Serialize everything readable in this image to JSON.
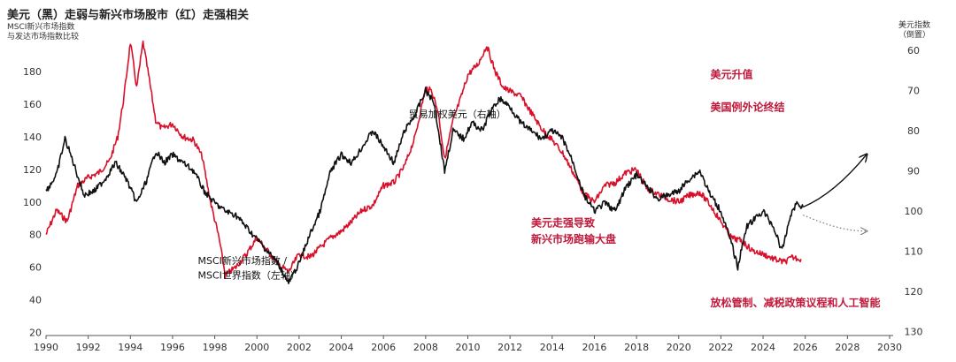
{
  "title": "美元（黑）走弱与新兴市场股市（红）走强相关",
  "left_axis_label": [
    "MSCI新兴市场指数",
    "与发达市场指数比较"
  ],
  "right_axis_label": [
    "美元指数",
    "（倒置）"
  ],
  "colors": {
    "usd": "#111111",
    "em": "#d8102a",
    "annotation": "#c0183a"
  },
  "chart_data": {
    "type": "line",
    "x_ticks": [
      1990,
      1992,
      1994,
      1996,
      1998,
      2000,
      2002,
      2004,
      2006,
      2008,
      2010,
      2012,
      2014,
      2016,
      2018,
      2020,
      2022,
      2024,
      2026,
      2028,
      2030
    ],
    "y_left": {
      "ticks": [
        20,
        40,
        60,
        80,
        100,
        120,
        140,
        160,
        180
      ],
      "range": [
        18,
        198
      ]
    },
    "y_right": {
      "ticks": [
        60,
        70,
        80,
        90,
        100,
        110,
        120,
        130
      ],
      "range": [
        58,
        131
      ],
      "inverted": true
    },
    "series": [
      {
        "name": "MSCI新兴市场指数 / MSCI世界指数（左轴）",
        "axis": "left",
        "points": [
          [
            1990.0,
            80
          ],
          [
            1990.5,
            95
          ],
          [
            1991.0,
            88
          ],
          [
            1991.5,
            110
          ],
          [
            1992.0,
            115
          ],
          [
            1992.5,
            118
          ],
          [
            1993.0,
            125
          ],
          [
            1993.4,
            140
          ],
          [
            1993.7,
            165
          ],
          [
            1994.0,
            198
          ],
          [
            1994.3,
            170
          ],
          [
            1994.6,
            198
          ],
          [
            1994.9,
            175
          ],
          [
            1995.2,
            150
          ],
          [
            1995.5,
            145
          ],
          [
            1996.0,
            148
          ],
          [
            1996.5,
            140
          ],
          [
            1997.0,
            138
          ],
          [
            1997.4,
            128
          ],
          [
            1997.8,
            100
          ],
          [
            1998.2,
            78
          ],
          [
            1998.5,
            55
          ],
          [
            1999.0,
            60
          ],
          [
            1999.5,
            68
          ],
          [
            2000.0,
            78
          ],
          [
            2000.5,
            70
          ],
          [
            2001.0,
            62
          ],
          [
            2001.5,
            57
          ],
          [
            2002.0,
            68
          ],
          [
            2002.5,
            66
          ],
          [
            2003.0,
            72
          ],
          [
            2003.5,
            78
          ],
          [
            2004.0,
            82
          ],
          [
            2004.5,
            88
          ],
          [
            2005.0,
            95
          ],
          [
            2005.5,
            98
          ],
          [
            2006.0,
            110
          ],
          [
            2006.5,
            112
          ],
          [
            2007.0,
            122
          ],
          [
            2007.5,
            140
          ],
          [
            2008.0,
            170
          ],
          [
            2008.3,
            168
          ],
          [
            2008.6,
            155
          ],
          [
            2008.9,
            126
          ],
          [
            2009.3,
            150
          ],
          [
            2009.7,
            165
          ],
          [
            2010.0,
            178
          ],
          [
            2010.5,
            185
          ],
          [
            2010.9,
            196
          ],
          [
            2011.3,
            180
          ],
          [
            2011.7,
            170
          ],
          [
            2012.0,
            168
          ],
          [
            2012.5,
            165
          ],
          [
            2013.0,
            155
          ],
          [
            2013.5,
            145
          ],
          [
            2014.0,
            138
          ],
          [
            2014.5,
            130
          ],
          [
            2015.0,
            118
          ],
          [
            2015.5,
            105
          ],
          [
            2016.0,
            100
          ],
          [
            2016.5,
            110
          ],
          [
            2017.0,
            112
          ],
          [
            2017.5,
            118
          ],
          [
            2018.0,
            120
          ],
          [
            2018.5,
            108
          ],
          [
            2019.0,
            105
          ],
          [
            2019.5,
            102
          ],
          [
            2020.0,
            100
          ],
          [
            2020.5,
            104
          ],
          [
            2021.0,
            106
          ],
          [
            2021.5,
            98
          ],
          [
            2022.0,
            88
          ],
          [
            2022.5,
            78
          ],
          [
            2023.0,
            76
          ],
          [
            2023.5,
            70
          ],
          [
            2024.0,
            68
          ],
          [
            2024.5,
            65
          ],
          [
            2025.0,
            63
          ],
          [
            2025.4,
            66
          ],
          [
            2025.8,
            65
          ]
        ]
      },
      {
        "name": "贸易加权美元（右轴）",
        "axis": "right",
        "points": [
          [
            1990.0,
            95
          ],
          [
            1990.5,
            91
          ],
          [
            1990.9,
            82
          ],
          [
            1991.3,
            88
          ],
          [
            1991.8,
            96
          ],
          [
            1992.3,
            95
          ],
          [
            1992.8,
            92
          ],
          [
            1993.3,
            88
          ],
          [
            1993.8,
            92
          ],
          [
            1994.3,
            98
          ],
          [
            1994.8,
            92
          ],
          [
            1995.2,
            85
          ],
          [
            1995.6,
            88
          ],
          [
            1996.0,
            86
          ],
          [
            1996.5,
            88
          ],
          [
            1997.0,
            90
          ],
          [
            1997.5,
            95
          ],
          [
            1998.0,
            98
          ],
          [
            1998.5,
            100
          ],
          [
            1999.0,
            101
          ],
          [
            1999.5,
            104
          ],
          [
            2000.0,
            107
          ],
          [
            2000.5,
            110
          ],
          [
            2001.0,
            113
          ],
          [
            2001.5,
            118
          ],
          [
            2002.0,
            113
          ],
          [
            2002.5,
            106
          ],
          [
            2003.0,
            100
          ],
          [
            2003.5,
            90
          ],
          [
            2004.0,
            86
          ],
          [
            2004.5,
            88
          ],
          [
            2005.0,
            84
          ],
          [
            2005.5,
            80
          ],
          [
            2006.0,
            84
          ],
          [
            2006.5,
            88
          ],
          [
            2007.0,
            80
          ],
          [
            2007.5,
            76
          ],
          [
            2008.0,
            70
          ],
          [
            2008.4,
            73
          ],
          [
            2008.9,
            90
          ],
          [
            2009.3,
            80
          ],
          [
            2009.8,
            82
          ],
          [
            2010.2,
            78
          ],
          [
            2010.7,
            80
          ],
          [
            2011.0,
            76
          ],
          [
            2011.5,
            72
          ],
          [
            2012.0,
            74
          ],
          [
            2012.5,
            78
          ],
          [
            2013.0,
            80
          ],
          [
            2013.5,
            82
          ],
          [
            2014.0,
            80
          ],
          [
            2014.5,
            82
          ],
          [
            2015.0,
            88
          ],
          [
            2015.5,
            96
          ],
          [
            2016.0,
            100
          ],
          [
            2016.5,
            98
          ],
          [
            2017.0,
            100
          ],
          [
            2017.5,
            94
          ],
          [
            2018.0,
            91
          ],
          [
            2018.5,
            94
          ],
          [
            2019.0,
            97
          ],
          [
            2019.5,
            96
          ],
          [
            2020.0,
            95
          ],
          [
            2020.5,
            92
          ],
          [
            2021.0,
            90
          ],
          [
            2021.5,
            96
          ],
          [
            2022.0,
            100
          ],
          [
            2022.5,
            108
          ],
          [
            2022.8,
            114
          ],
          [
            2023.2,
            104
          ],
          [
            2023.6,
            102
          ],
          [
            2024.0,
            100
          ],
          [
            2024.5,
            104
          ],
          [
            2024.9,
            110
          ],
          [
            2025.3,
            101
          ],
          [
            2025.6,
            98
          ],
          [
            2025.9,
            99
          ]
        ]
      }
    ],
    "projections": [
      {
        "style": "solid",
        "points": [
          [
            2025.9,
            99
          ],
          [
            2026.8,
            97
          ],
          [
            2027.8,
            93
          ],
          [
            2028.9,
            86
          ]
        ]
      },
      {
        "style": "dotted",
        "points": [
          [
            2025.9,
            101
          ],
          [
            2026.8,
            103
          ],
          [
            2027.8,
            105
          ],
          [
            2028.9,
            105
          ]
        ]
      }
    ],
    "annotations": [
      {
        "text": "贸易加权美元（右轴）",
        "x": 2007.2,
        "y": 152,
        "color": "dark"
      },
      {
        "text": "MSCI新兴市场指数 /",
        "x": 1997.2,
        "y": 62,
        "color": "dark"
      },
      {
        "text": "MSCI世界指数（左轴）",
        "x": 1997.2,
        "y": 53,
        "color": "dark"
      },
      {
        "text": "美元升值",
        "x": 2021.5,
        "y": 176,
        "color": "red"
      },
      {
        "text": "美国例外论终结",
        "x": 2021.5,
        "y": 156,
        "color": "red"
      },
      {
        "text": "美元走强导致",
        "x": 2013.0,
        "y": 85,
        "color": "red"
      },
      {
        "text": "新兴市场跑输大盘",
        "x": 2013.0,
        "y": 75,
        "color": "red"
      },
      {
        "text": "放松管制、减税政策议程和人工智能",
        "x": 2021.5,
        "y": 36,
        "color": "red"
      }
    ]
  }
}
